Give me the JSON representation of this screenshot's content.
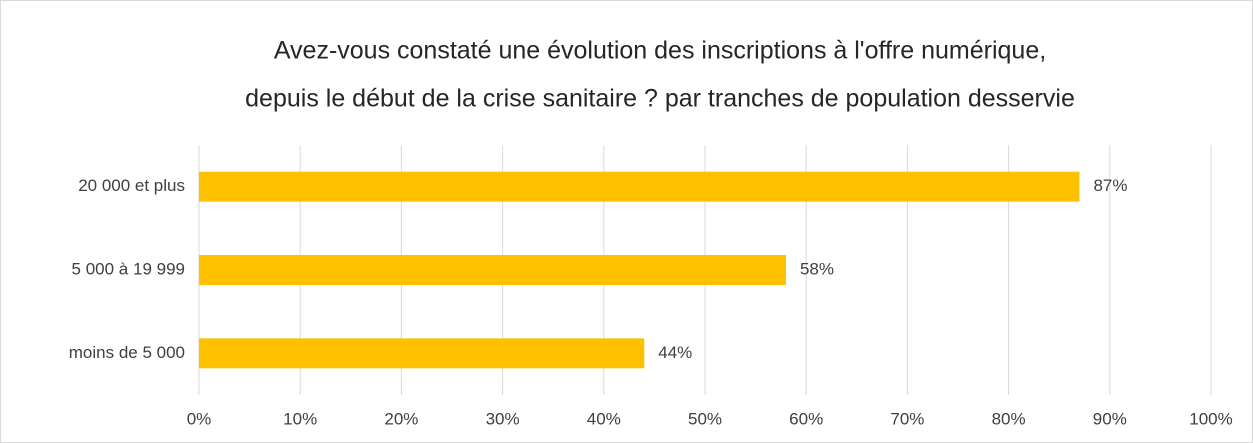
{
  "chart_data": {
    "type": "bar",
    "orientation": "horizontal",
    "title": [
      "Avez-vous constaté une évolution des inscriptions à l'offre numérique,",
      "depuis le début de la crise sanitaire ? par tranches de population desservie"
    ],
    "categories": [
      "20 000 et plus",
      "5 000 à 19 999",
      "moins de 5 000"
    ],
    "values": [
      87,
      58,
      44
    ],
    "value_labels": [
      "87%",
      "58%",
      "44%"
    ],
    "color": "#ffc000",
    "xlim": [
      0,
      100
    ],
    "xticks": [
      {
        "value": 0,
        "label": "0%"
      },
      {
        "value": 10,
        "label": "10%"
      },
      {
        "value": 20,
        "label": "20%"
      },
      {
        "value": 30,
        "label": "30%"
      },
      {
        "value": 40,
        "label": "40%"
      },
      {
        "value": 50,
        "label": "50%"
      },
      {
        "value": 60,
        "label": "60%"
      },
      {
        "value": 70,
        "label": "70%"
      },
      {
        "value": 80,
        "label": "80%"
      },
      {
        "value": 90,
        "label": "90%"
      },
      {
        "value": 100,
        "label": "100%"
      }
    ],
    "grid": true
  }
}
